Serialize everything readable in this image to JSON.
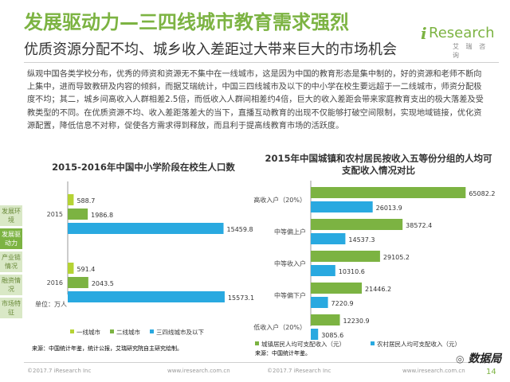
{
  "header": {
    "title": "发展驱动力—三四线城市教育需求强烈",
    "subtitle": "优质资源分配不均、城乡收入差距过大带来巨大的市场机会",
    "logo": {
      "mark": "i",
      "text": "Research",
      "sub": "艾 瑞 咨 询"
    }
  },
  "paragraph": "纵观中国各类学校分布，优秀的师资和资源无不集中在一线城市，这是因为中国的教育形态是集中制的，好的资源和老师不断向上集中，进而导致教研及内容的倾斜，而据艾瑞统计，中国三四线城市及以下的中小学在校生要远超于一二线城市，师资分配极度不均；其二，城乡间高收入人群相差2.5倍，而低收入人群间相差约4倍，巨大的收入差距会带来家庭教育支出的极大落差及受教类型的不同。在优质资源不均、收入差距落差大的当下，直播互动教育的出现不仅能够打破空间限制，实现地域链接，优化资源配置，降低信息不对称，促使各方需求得到释放，而且利于提高线教育市场的活跃度。",
  "sidebar": {
    "items": [
      {
        "label": "发展环境",
        "active": false
      },
      {
        "label": "发展驱动力",
        "active": true
      },
      {
        "label": "产业链情况",
        "active": false
      },
      {
        "label": "融资情况",
        "active": false
      },
      {
        "label": "市场特征",
        "active": false
      }
    ]
  },
  "chart_data": [
    {
      "type": "bar",
      "orientation": "horizontal",
      "title": "2015-2016年中国中小学阶段在校生人口数",
      "unit_label": "单位：万人",
      "categories": [
        "2015",
        "2016"
      ],
      "series": [
        {
          "name": "一线城市",
          "color": "#b5d334",
          "values": [
            588.7,
            591.4
          ]
        },
        {
          "name": "二线城市",
          "color": "#7cb342",
          "values": [
            1986.8,
            2043.5
          ]
        },
        {
          "name": "三四线城市及以下",
          "color": "#29a9e0",
          "values": [
            15459.8,
            15573.1
          ]
        }
      ],
      "xlim": [
        0,
        17000
      ],
      "source": "来源：中国统计年鉴，统计公报，艾瑞研究院自主研究绘制。"
    },
    {
      "type": "bar",
      "orientation": "horizontal",
      "title": "2015年中国城镇和农村居民按收入五等份分组的人均可支配收入情况对比",
      "categories": [
        "高收入户（20%）",
        "中等偏上户",
        "中等收入户",
        "中等偏下户",
        "低收入户（20%）"
      ],
      "series": [
        {
          "name": "城镇居民人均可支配收入（元）",
          "color": "#7cb342",
          "values": [
            65082.2,
            38572.4,
            29105.2,
            21446.2,
            12230.9
          ]
        },
        {
          "name": "农村居民人均可支配收入（元）",
          "color": "#29a9e0",
          "values": [
            26013.9,
            14537.3,
            10310.6,
            7220.9,
            3085.6
          ]
        }
      ],
      "xlim": [
        0,
        72000
      ],
      "source": "来源：中国统计年鉴。"
    }
  ],
  "footer": {
    "copyright_left": "©2017.7 iResearch Inc",
    "url_left": "www.iresearch.com.cn",
    "copyright_right": "©2017.7 iResearch Inc",
    "url_right": "www.iresearch.com.cn",
    "page": "14",
    "brand": "数据局"
  }
}
